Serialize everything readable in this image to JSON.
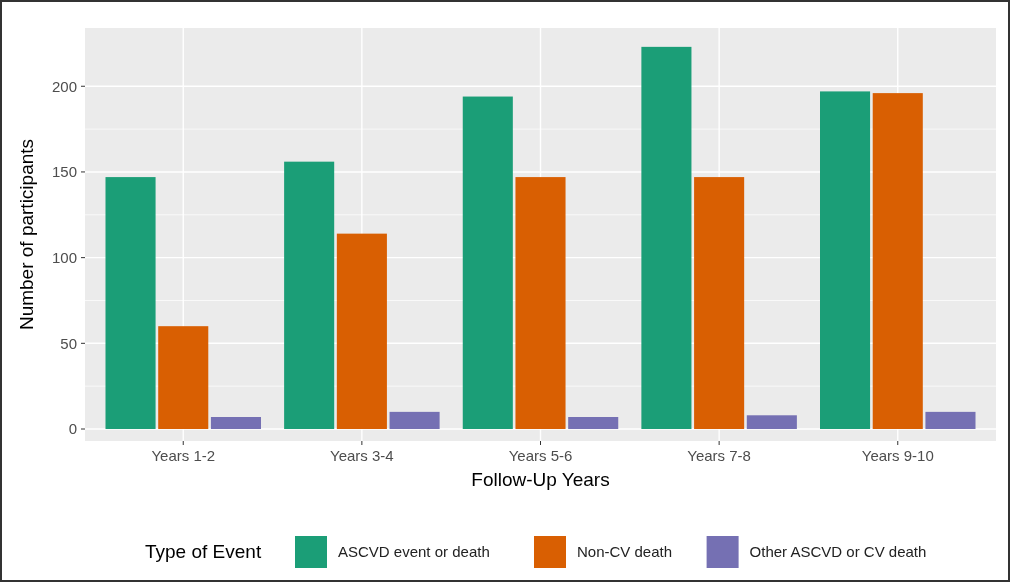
{
  "chart_data": {
    "type": "bar",
    "xlabel": "Follow-Up Years",
    "ylabel": "Number of participants",
    "legend_title": "Type of Event",
    "categories": [
      "Years 1-2",
      "Years 3-4",
      "Years 5-6",
      "Years 7-8",
      "Years 9-10"
    ],
    "series": [
      {
        "name": "ASCVD event or death",
        "color": "#1b9e77",
        "values": [
          147,
          156,
          194,
          223,
          197
        ]
      },
      {
        "name": "Non-CV death",
        "color": "#d95f02",
        "values": [
          60,
          114,
          147,
          147,
          196
        ]
      },
      {
        "name": "Other ASCVD or CV death",
        "color": "#7570b3",
        "values": [
          7,
          10,
          7,
          8,
          10
        ]
      }
    ],
    "ylim": [
      -7,
      234
    ],
    "yticks": [
      0,
      50,
      100,
      150,
      200
    ],
    "grid": true,
    "legend": "bottom"
  }
}
